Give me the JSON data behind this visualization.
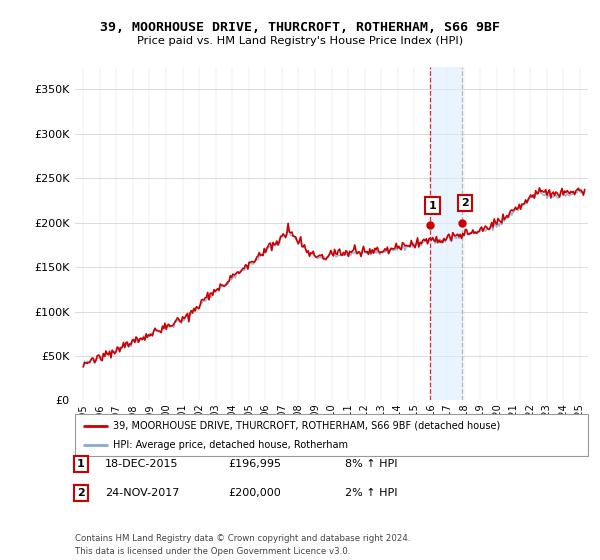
{
  "title": "39, MOORHOUSE DRIVE, THURCROFT, ROTHERHAM, S66 9BF",
  "subtitle": "Price paid vs. HM Land Registry's House Price Index (HPI)",
  "ytick_values": [
    0,
    50000,
    100000,
    150000,
    200000,
    250000,
    300000,
    350000
  ],
  "ylim": [
    0,
    375000
  ],
  "sale1_x": 2015.96,
  "sale1_y": 196995,
  "sale2_x": 2017.9,
  "sale2_y": 200000,
  "property_color": "#cc0000",
  "hpi_color": "#88aacc",
  "shade_color": "#ddeeff",
  "vline1_color": "#cc0000",
  "vline2_color": "#aaaaaa",
  "footer": "Contains HM Land Registry data © Crown copyright and database right 2024.\nThis data is licensed under the Open Government Licence v3.0.",
  "legend_property": "39, MOORHOUSE DRIVE, THURCROFT, ROTHERHAM, S66 9BF (detached house)",
  "legend_hpi": "HPI: Average price, detached house, Rotherham",
  "table_rows": [
    {
      "num": "1",
      "date": "18-DEC-2015",
      "price": "£196,995",
      "change": "8% ↑ HPI"
    },
    {
      "num": "2",
      "date": "24-NOV-2017",
      "price": "£200,000",
      "change": "2% ↑ HPI"
    }
  ],
  "xmin": 1994.5,
  "xmax": 2025.5,
  "xticks_start": 1995,
  "xticks_end": 2025
}
